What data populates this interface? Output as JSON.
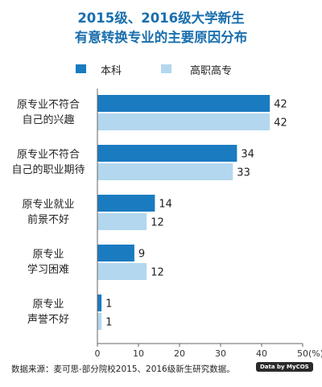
{
  "chart_data": {
    "type": "bar",
    "orientation": "horizontal",
    "title": [
      "2015级、2016级大学新生",
      "有意转换专业的主要原因分布"
    ],
    "categories": [
      "原专业不符合\n自己的兴趣",
      "原专业不符合\n自己的职业期待",
      "原专业就业\n前景不好",
      "原专业\n学习困难",
      "原专业\n声誉不好"
    ],
    "series": [
      {
        "name": "本科",
        "values": [
          42,
          34,
          14,
          9,
          1
        ],
        "color": "#1a7bc0"
      },
      {
        "name": "高职高专",
        "values": [
          42,
          33,
          12,
          12,
          1
        ],
        "color": "#b3d7ee"
      }
    ],
    "xlim": [
      0,
      50
    ],
    "xticks": [
      0,
      10,
      20,
      30,
      40,
      50
    ],
    "x_unit_label": "(%)",
    "grid": false,
    "legend_position": "top"
  },
  "footer": {
    "source": "数据来源：麦可思-部分院校2015、2016级新生研究数据。",
    "brand": "Data by MyCOS"
  }
}
